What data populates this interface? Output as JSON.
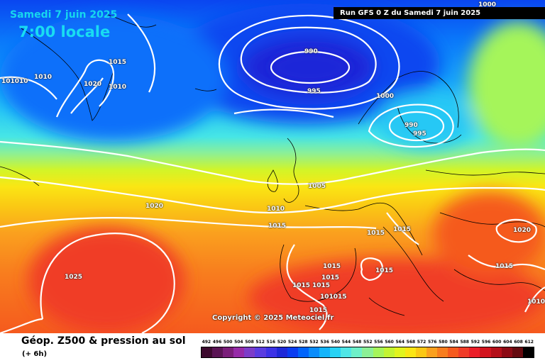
{
  "header": {
    "date": "Samedi 7 juin 2025",
    "local_time": "7:00 locale",
    "run_info": "Run GFS 0 Z du Samedi 7 juin 2025",
    "copyright": "Copyright © 2025 Meteociel.fr"
  },
  "footer": {
    "title": "Géop. Z500 & pression au sol",
    "subtitle": "(+ 6h)"
  },
  "isobar_labels": [
    "1000",
    "990",
    "995",
    "1015",
    "1020",
    "1010",
    "101010",
    "1010",
    "1000",
    "990",
    "995",
    "1005",
    "1010",
    "1015",
    "1020",
    "1015",
    "1015",
    "1015",
    "1020",
    "1015",
    "1015",
    "1025",
    "1015",
    "1015",
    "1015",
    "101015",
    "1015",
    "1010"
  ],
  "legend_scale": {
    "values": [
      "492",
      "496",
      "500",
      "504",
      "508",
      "512",
      "516",
      "520",
      "524",
      "528",
      "532",
      "536",
      "540",
      "544",
      "548",
      "552",
      "556",
      "560",
      "564",
      "568",
      "572",
      "576",
      "580",
      "584",
      "588",
      "592",
      "596",
      "600",
      "604",
      "608",
      "612"
    ],
    "colors": [
      "#3c0a2e",
      "#5a1454",
      "#7a1e7a",
      "#962aa8",
      "#7c3cc8",
      "#5a3ce0",
      "#3c32e6",
      "#1e28d8",
      "#0a3cf0",
      "#0064fa",
      "#0a8cfa",
      "#14b4fa",
      "#28d2f5",
      "#50e6e6",
      "#6ef0c8",
      "#8cf096",
      "#a5f55a",
      "#c3f532",
      "#e1f51e",
      "#fae614",
      "#fac814",
      "#faa01e",
      "#f87d1e",
      "#f55a1e",
      "#f03c28",
      "#eb1e28",
      "#d2141e",
      "#b40f19",
      "#8c0a14",
      "#640a0f",
      "#000000"
    ]
  },
  "colors": {
    "title_accent": "#17d7ee",
    "isobar": "#ffffff",
    "coastline": "#000000"
  }
}
